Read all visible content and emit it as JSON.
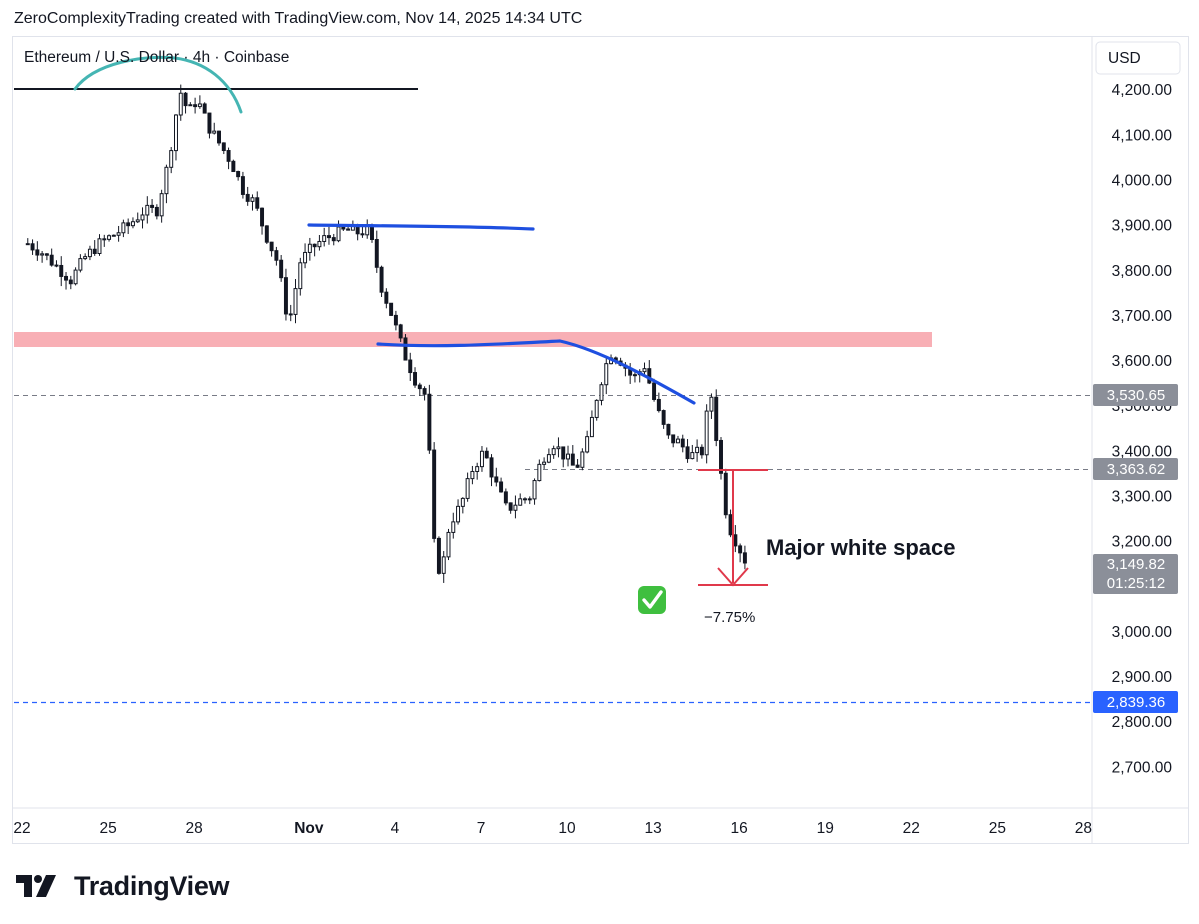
{
  "header_text": "ZeroComplexityTrading created with TradingView.com, Nov 14, 2025 14:34 UTC",
  "footer": {
    "brand": "TradingView",
    "logo_icon": "tradingview-logo-icon"
  },
  "colors": {
    "up": "#131722",
    "down": "#131722",
    "resistance": "#f7a1a8",
    "trend_blue": "#1e4fe0",
    "teal_arc": "#45b5b3",
    "measure_red": "#e0394b",
    "price_badge": "#8b8f99",
    "support_badge": "#2962ff"
  },
  "chart_data": {
    "type": "candlestick",
    "symbol_title": "Ethereum / U.S. Dollar · 4h · Coinbase",
    "currency": "USD",
    "x_ticks": [
      "22",
      "25",
      "28",
      "Nov",
      "4",
      "7",
      "10",
      "13",
      "16",
      "19",
      "22",
      "25",
      "28"
    ],
    "y_ticks": [
      "4,200.00",
      "4,100.00",
      "4,000.00",
      "3,900.00",
      "3,800.00",
      "3,700.00",
      "3,600.00",
      "3,500.00",
      "3,400.00",
      "3,300.00",
      "3,200.00",
      "3,000.00",
      "2,900.00",
      "2,800.00",
      "2,700.00"
    ],
    "y_tick_values": [
      4200,
      4100,
      4000,
      3900,
      3800,
      3700,
      3600,
      3500,
      3400,
      3300,
      3200,
      3000,
      2900,
      2800,
      2700
    ],
    "ylim": [
      2610,
      4320
    ],
    "x_range_days": [
      -0.35,
      37.3
    ],
    "x_tick_days": [
      0,
      3,
      6,
      10,
      13,
      16,
      19,
      22,
      25,
      28,
      31,
      34,
      37
    ],
    "close_path": [
      [
        0.2,
        3860
      ],
      [
        0.7,
        3840
      ],
      [
        1.2,
        3810
      ],
      [
        1.7,
        3780
      ],
      [
        2.2,
        3830
      ],
      [
        2.7,
        3860
      ],
      [
        3.2,
        3880
      ],
      [
        3.7,
        3900
      ],
      [
        4.2,
        3930
      ],
      [
        4.7,
        3935
      ],
      [
        5.1,
        4040
      ],
      [
        5.5,
        4200
      ],
      [
        5.8,
        4150
      ],
      [
        6.1,
        4180
      ],
      [
        6.5,
        4120
      ],
      [
        6.9,
        4080
      ],
      [
        7.3,
        4040
      ],
      [
        7.7,
        3980
      ],
      [
        8.1,
        3950
      ],
      [
        8.5,
        3880
      ],
      [
        8.9,
        3820
      ],
      [
        9.3,
        3680
      ],
      [
        9.7,
        3820
      ],
      [
        10.1,
        3850
      ],
      [
        10.5,
        3870
      ],
      [
        10.9,
        3880
      ],
      [
        11.3,
        3890
      ],
      [
        11.7,
        3885
      ],
      [
        12.1,
        3890
      ],
      [
        12.5,
        3770
      ],
      [
        12.9,
        3700
      ],
      [
        13.3,
        3620
      ],
      [
        13.7,
        3560
      ],
      [
        14.1,
        3520
      ],
      [
        14.35,
        3200
      ],
      [
        14.6,
        3120
      ],
      [
        14.9,
        3240
      ],
      [
        15.3,
        3280
      ],
      [
        15.7,
        3360
      ],
      [
        16.1,
        3400
      ],
      [
        16.5,
        3330
      ],
      [
        16.9,
        3270
      ],
      [
        17.3,
        3290
      ],
      [
        17.7,
        3300
      ],
      [
        18.1,
        3380
      ],
      [
        18.5,
        3420
      ],
      [
        18.9,
        3390
      ],
      [
        19.3,
        3360
      ],
      [
        19.7,
        3420
      ],
      [
        20.1,
        3540
      ],
      [
        20.5,
        3620
      ],
      [
        20.9,
        3600
      ],
      [
        21.3,
        3560
      ],
      [
        21.7,
        3590
      ],
      [
        22.1,
        3500
      ],
      [
        22.5,
        3430
      ],
      [
        22.9,
        3420
      ],
      [
        23.3,
        3390
      ],
      [
        23.7,
        3400
      ],
      [
        24.0,
        3540
      ],
      [
        24.3,
        3380
      ],
      [
        24.6,
        3240
      ],
      [
        24.9,
        3200
      ],
      [
        25.2,
        3160
      ]
    ],
    "annotations": {
      "price_label": "3,149.82",
      "countdown": "01:25:12",
      "level_upper": "3,530.65",
      "level_mid": "3,363.62",
      "level_support": "2,839.36",
      "measure_text": "Major white space",
      "percent_text": "−7.75%",
      "check_icon": "check-mark-emoji-icon"
    }
  }
}
